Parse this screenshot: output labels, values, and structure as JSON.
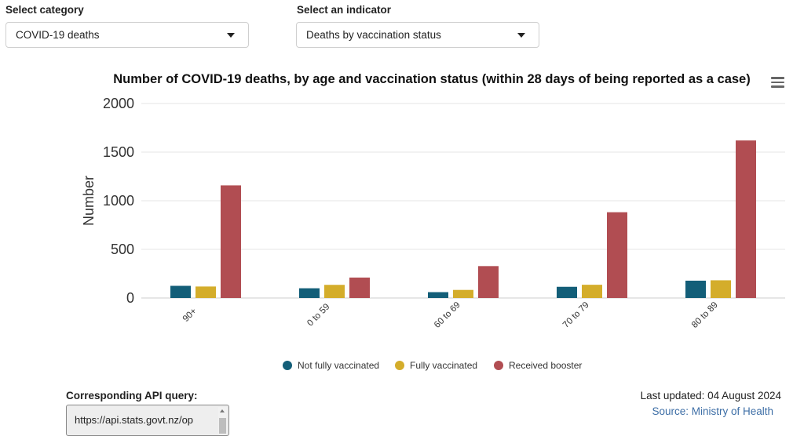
{
  "filters": {
    "category": {
      "label": "Select category",
      "value": "COVID-19 deaths"
    },
    "indicator": {
      "label": "Select an indicator",
      "value": "Deaths by vaccination status"
    }
  },
  "chart_data": {
    "type": "bar",
    "title": "Number of COVID-19 deaths, by age and vaccination status (within 28 days of being reported as a case)",
    "xlabel": "",
    "ylabel": "Number",
    "ylim": [
      0,
      2000
    ],
    "yticks": [
      "0",
      "500",
      "1000",
      "1500",
      "2000"
    ],
    "categories": [
      "90+",
      "0 to 59",
      "60 to 69",
      "70 to 79",
      "80 to 89"
    ],
    "series": [
      {
        "name": "Not fully vaccinated",
        "color": "#135e78",
        "values": [
          125,
          100,
          60,
          115,
          178
        ]
      },
      {
        "name": "Fully vaccinated",
        "color": "#d4ad2b",
        "values": [
          118,
          135,
          83,
          136,
          182
        ]
      },
      {
        "name": "Received booster",
        "color": "#b14d52",
        "values": [
          1158,
          210,
          328,
          882,
          1620
        ]
      }
    ],
    "grid": true,
    "legend": "bottom"
  },
  "api": {
    "label": "Corresponding API query:",
    "url": "https://api.stats.govt.nz/op"
  },
  "footer": {
    "last_updated": "Last updated: 04 August 2024",
    "source": "Source: Ministry of Health"
  }
}
